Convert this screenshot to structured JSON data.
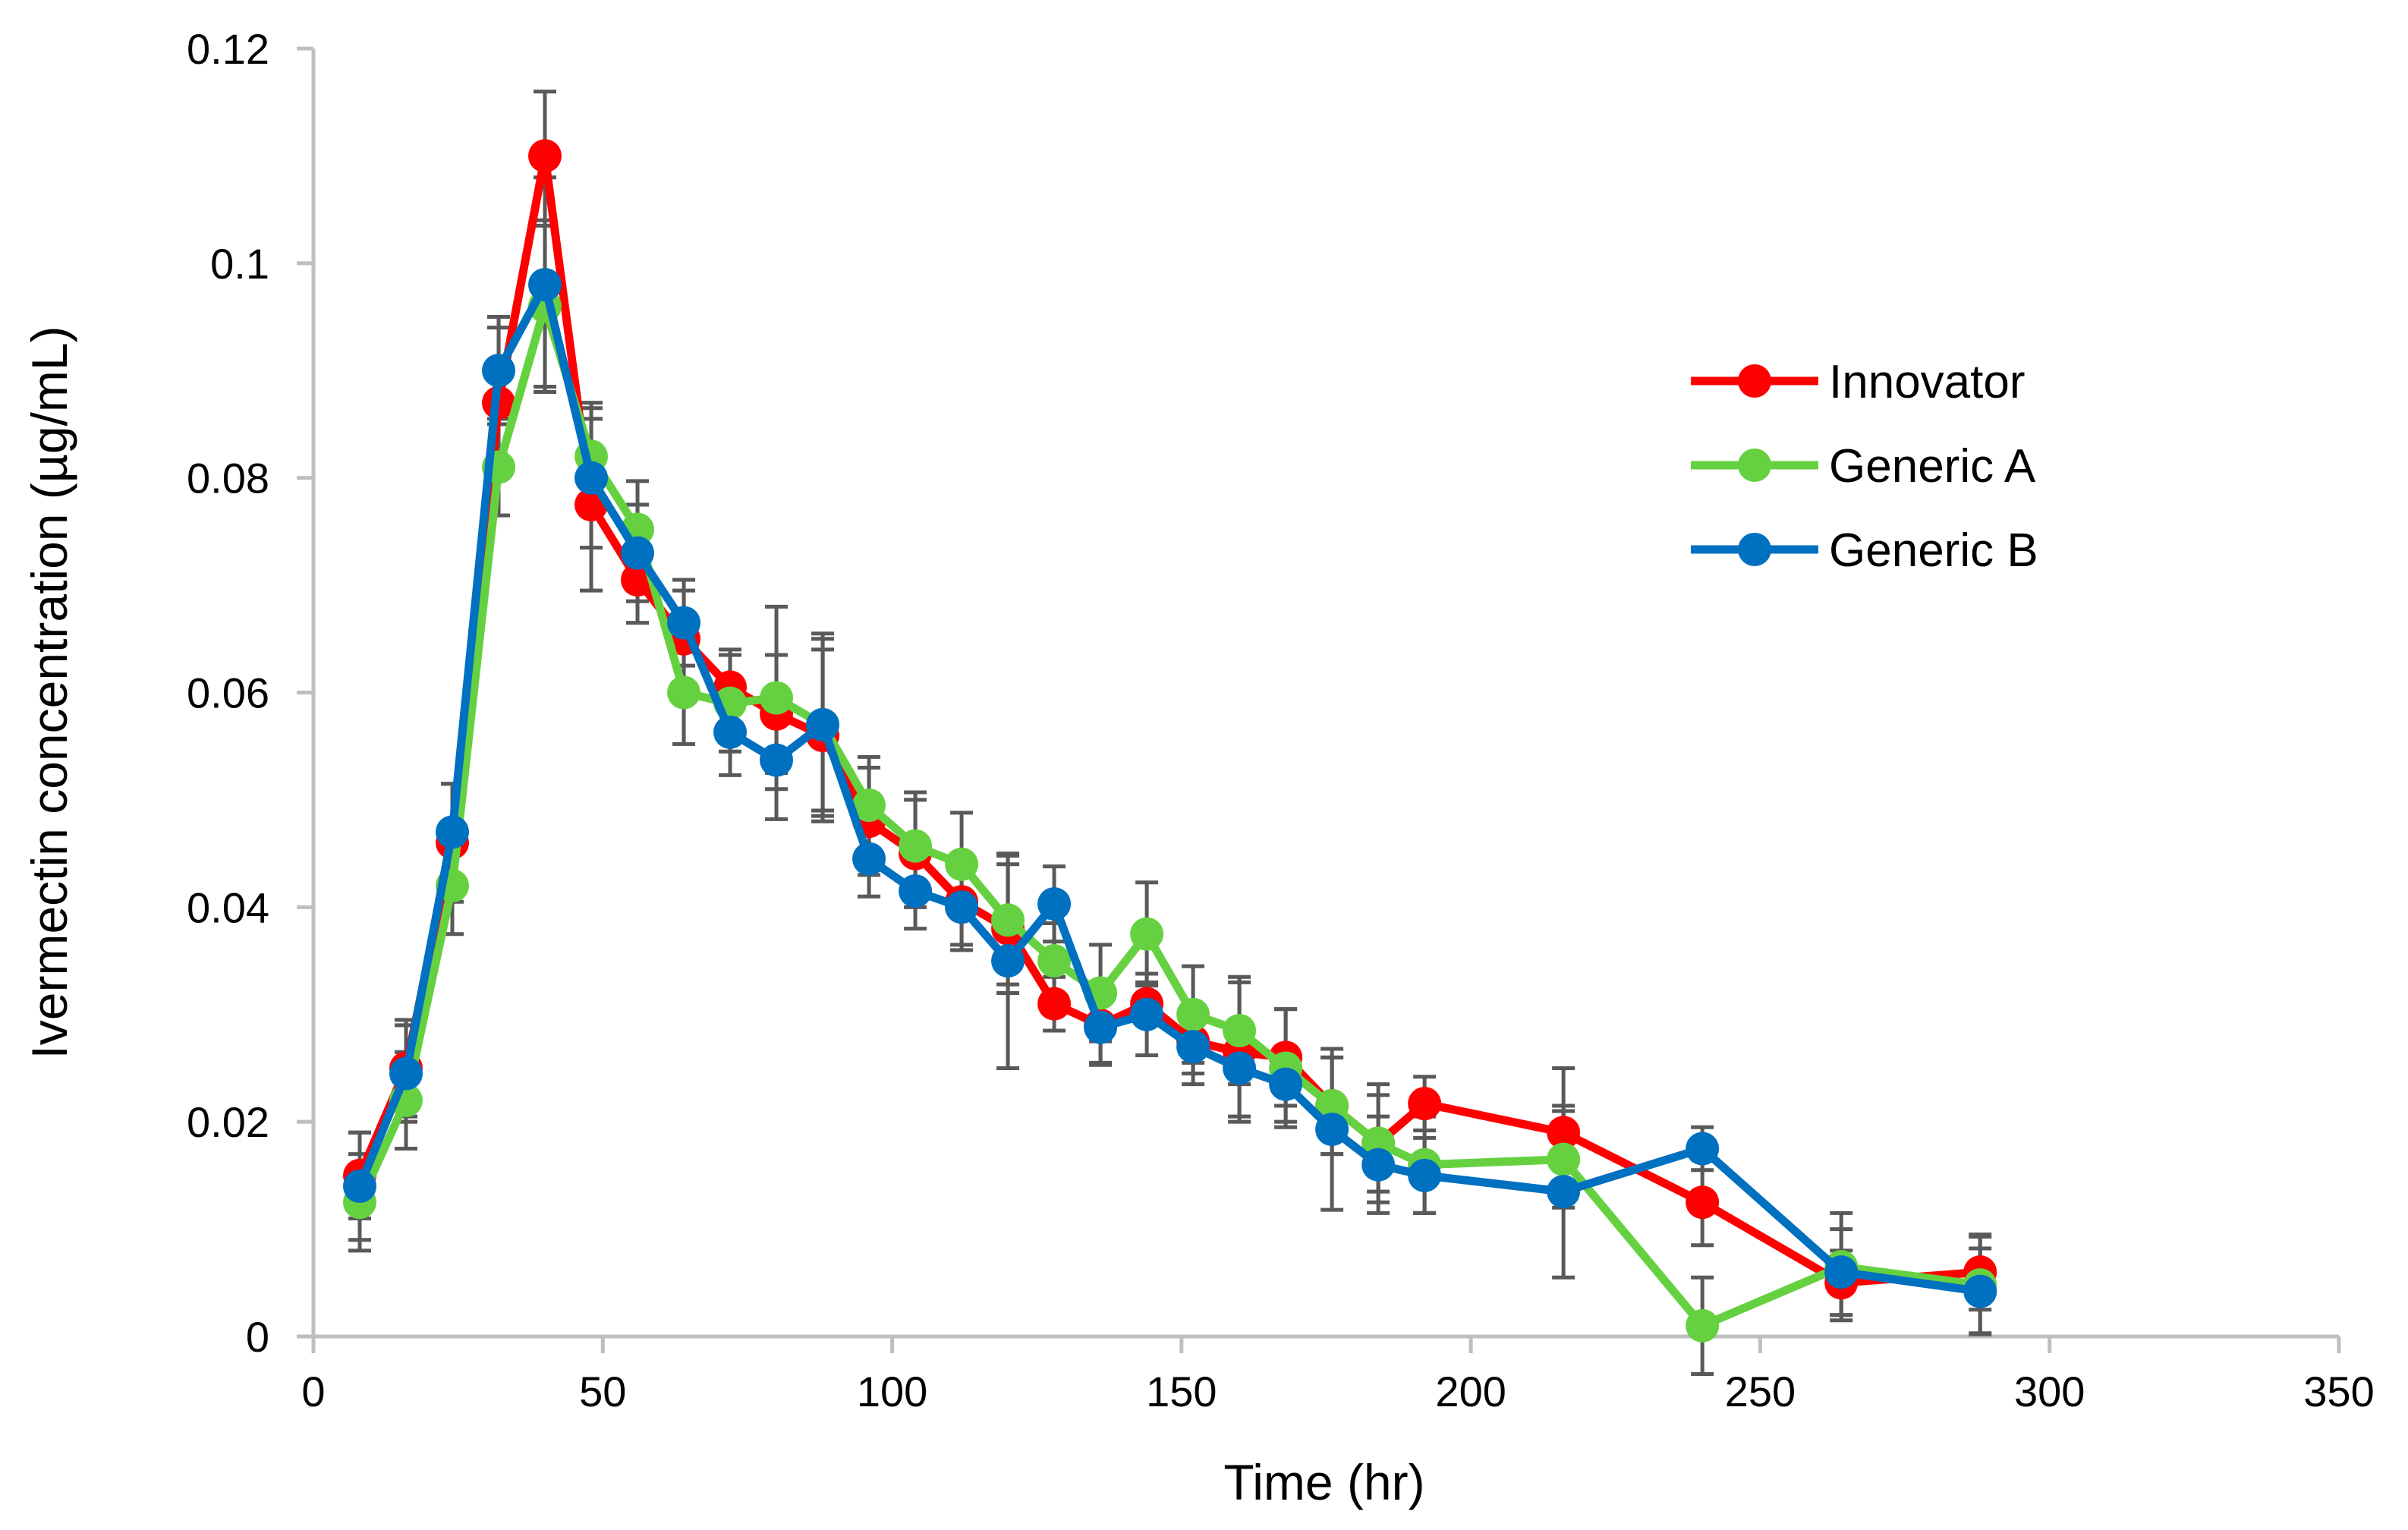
{
  "chart_data": {
    "type": "line",
    "title": "",
    "xlabel": "Time (hr)",
    "ylabel": "Ivermectin concentration (µg/mL)",
    "xlim": [
      0,
      350
    ],
    "ylim": [
      0,
      0.12
    ],
    "xticks": [
      "0",
      "50",
      "100",
      "150",
      "200",
      "250",
      "300",
      "350"
    ],
    "yticks": [
      "0",
      "0.02",
      "0.04",
      "0.06",
      "0.08",
      "0.1",
      "0.12"
    ],
    "grid": false,
    "legend_position": "top-right",
    "error_bars": true,
    "x": [
      8,
      16,
      24,
      32,
      40,
      48,
      56,
      64,
      72,
      80,
      88,
      96,
      104,
      112,
      120,
      128,
      136,
      144,
      152,
      160,
      168,
      176,
      184,
      192,
      216,
      240,
      264,
      288
    ],
    "series": [
      {
        "name": "Innovator",
        "color": "#ff0000",
        "values": [
          0.015,
          0.025,
          0.046,
          0.087,
          0.11,
          0.0775,
          0.0705,
          0.065,
          0.0605,
          0.058,
          0.056,
          0.048,
          0.045,
          0.0405,
          0.038,
          0.031,
          0.029,
          0.031,
          0.0275,
          0.0265,
          0.026,
          0.0215,
          0.018,
          0.0217,
          0.019,
          0.0125,
          0.005,
          0.006
        ],
        "errors": [
          0.004,
          0.0045,
          0.0055,
          0.007,
          0.006,
          0.008,
          0.004,
          0.0045,
          0.0035,
          0.0055,
          0.008,
          0.005,
          0.005,
          0.0045,
          0.006,
          0.0025,
          0.0035,
          0.002,
          0.003,
          0.0065,
          0.0045,
          0.0045,
          0.0055,
          0.0025,
          0.006,
          0.004,
          0.003,
          0.0035
        ]
      },
      {
        "name": "Generic A",
        "color": "#66d140",
        "values": [
          0.0125,
          0.022,
          0.042,
          0.081,
          0.096,
          0.082,
          0.0752,
          0.06,
          0.059,
          0.0595,
          0.057,
          0.0495,
          0.0457,
          0.044,
          0.0388,
          0.035,
          0.032,
          0.0375,
          0.03,
          0.0285,
          0.025,
          0.0215,
          0.018,
          0.016,
          0.0165,
          0.001,
          0.0065,
          0.0048
        ],
        "errors": [
          0.0045,
          0.0045,
          0.0045,
          0.0045,
          0.0075,
          0.005,
          0.0045,
          0.0048,
          0.0045,
          0.0085,
          0.008,
          0.0045,
          0.005,
          0.0048,
          0.006,
          0.0035,
          0.0045,
          0.0048,
          0.0045,
          0.005,
          0.0055,
          0.0045,
          0.0045,
          0.0045,
          0.0045,
          0.0045,
          0.005,
          0.0045
        ]
      },
      {
        "name": "Generic B",
        "color": "#0070c0",
        "values": [
          0.014,
          0.0245,
          0.047,
          0.09,
          0.098,
          0.08,
          0.073,
          0.0665,
          0.0563,
          0.0537,
          0.057,
          0.0445,
          0.0415,
          0.04,
          0.035,
          0.0403,
          0.0288,
          0.03,
          0.027,
          0.025,
          0.0235,
          0.0193,
          0.016,
          0.015,
          0.0135,
          0.0175,
          0.006,
          0.0042
        ],
        "errors": [
          0.005,
          0.0045,
          0.0045,
          0.005,
          0.01,
          0.0065,
          0.0045,
          0.004,
          0.004,
          0.0055,
          0.0085,
          0.0035,
          0.0035,
          0.0035,
          0.01,
          0.0035,
          0.0035,
          0.0038,
          0.0035,
          0.0045,
          0.0035,
          0.0075,
          0.0045,
          0.0035,
          0.008,
          0.002,
          0.004,
          0.004
        ]
      }
    ]
  }
}
